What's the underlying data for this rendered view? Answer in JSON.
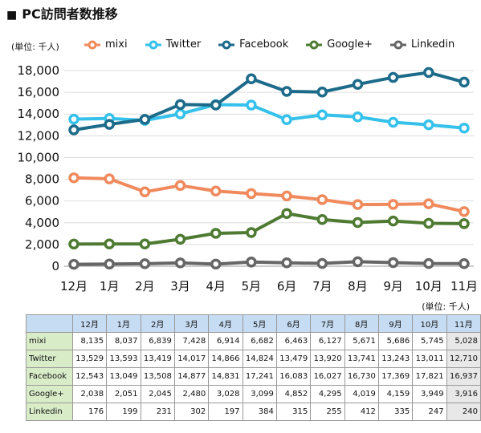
{
  "title": "PC訪問者数推移",
  "title_marker": "■",
  "unit_label": "(単位: 千人)",
  "chart_data": {
    "type": "line",
    "categories": [
      "12月",
      "1月",
      "2月",
      "3月",
      "4月",
      "5月",
      "6月",
      "7月",
      "8月",
      "9月",
      "10月",
      "11月"
    ],
    "ylim": [
      0,
      18000
    ],
    "yticks": [
      "0",
      "2,000",
      "4,000",
      "6,000",
      "8,000",
      "10,000",
      "12,000",
      "14,000",
      "16,000",
      "18,000"
    ],
    "ytick_values": [
      0,
      2000,
      4000,
      6000,
      8000,
      10000,
      12000,
      14000,
      16000,
      18000
    ],
    "grid": true,
    "legend_position": "top",
    "series": [
      {
        "name": "mixi",
        "color": "#f08a5d",
        "values": [
          8135,
          8037,
          6839,
          7428,
          6914,
          6682,
          6463,
          6127,
          5671,
          5686,
          5745,
          5028
        ]
      },
      {
        "name": "Twitter",
        "color": "#36c1eb",
        "values": [
          13529,
          13593,
          13419,
          14017,
          14866,
          14824,
          13479,
          13920,
          13741,
          13243,
          13011,
          12710
        ]
      },
      {
        "name": "Facebook",
        "color": "#1d6b8a",
        "values": [
          12543,
          13049,
          13508,
          14877,
          14831,
          17241,
          16083,
          16027,
          16730,
          17369,
          17821,
          16937
        ]
      },
      {
        "name": "Google+",
        "color": "#4e7a32",
        "values": [
          2038,
          2051,
          2045,
          2480,
          3028,
          3099,
          4852,
          4295,
          4019,
          4159,
          3949,
          3916
        ]
      },
      {
        "name": "Linkedin",
        "color": "#666666",
        "values": [
          176,
          199,
          231,
          302,
          197,
          384,
          315,
          255,
          412,
          335,
          247,
          240
        ]
      }
    ]
  },
  "table": {
    "headers": [
      "12月",
      "1月",
      "2月",
      "3月",
      "4月",
      "5月",
      "6月",
      "7月",
      "8月",
      "9月",
      "10月",
      "11月"
    ],
    "rows": [
      {
        "label": "mixi",
        "cells": [
          "8,135",
          "8,037",
          "6,839",
          "7,428",
          "6,914",
          "6,682",
          "6,463",
          "6,127",
          "5,671",
          "5,686",
          "5,745",
          "5,028"
        ]
      },
      {
        "label": "Twitter",
        "cells": [
          "13,529",
          "13,593",
          "13,419",
          "14,017",
          "14,866",
          "14,824",
          "13,479",
          "13,920",
          "13,741",
          "13,243",
          "13,011",
          "12,710"
        ]
      },
      {
        "label": "Facebook",
        "cells": [
          "12,543",
          "13,049",
          "13,508",
          "14,877",
          "14,831",
          "17,241",
          "16,083",
          "16,027",
          "16,730",
          "17,369",
          "17,821",
          "16,937"
        ]
      },
      {
        "label": "Google+",
        "cells": [
          "2,038",
          "2,051",
          "2,045",
          "2,480",
          "3,028",
          "3,099",
          "4,852",
          "4,295",
          "4,019",
          "4,159",
          "3,949",
          "3,916"
        ]
      },
      {
        "label": "Linkedin",
        "cells": [
          "176",
          "199",
          "231",
          "302",
          "197",
          "384",
          "315",
          "255",
          "412",
          "335",
          "247",
          "240"
        ]
      }
    ]
  }
}
